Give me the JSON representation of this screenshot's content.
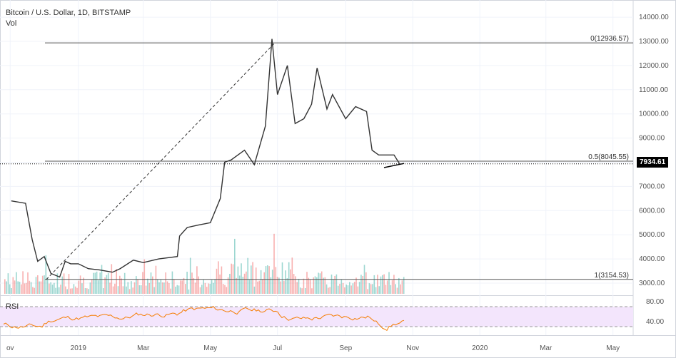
{
  "header": {
    "title": "Bitcoin / U.S. Dollar, 1D, BITSTAMP",
    "vol_label": "Vol"
  },
  "rsi": {
    "label": "RSI",
    "axis_ticks": [
      "80.00",
      "40.00"
    ],
    "upper_level": 70,
    "lower_level": 30
  },
  "current_price": "7934.61",
  "colors": {
    "up": "#26a69a",
    "down": "#ef5350",
    "line": "#333333",
    "rsi_line": "#f57c00",
    "rsi_band": "#f3e5fc"
  },
  "chart_data": {
    "type": "line",
    "instrument": "Bitcoin / U.S. Dollar",
    "interval": "1D",
    "exchange": "BITSTAMP",
    "x_axis_labels": [
      "ov",
      "2019",
      "Mar",
      "May",
      "Jul",
      "Sep",
      "Nov",
      "2020",
      "Mar",
      "May"
    ],
    "y_axis_ticks": [
      3000,
      4000,
      5000,
      6000,
      7000,
      8000,
      9000,
      10000,
      11000,
      12000,
      13000,
      14000
    ],
    "ylim": [
      2500,
      14500
    ],
    "series": [
      {
        "x": [
          "2018-11-01",
          "2018-11-14",
          "2018-11-20",
          "2018-11-25",
          "2018-12-01",
          "2018-12-07",
          "2018-12-15",
          "2018-12-20",
          "2018-12-25",
          "2019-01-01",
          "2019-01-10",
          "2019-01-20",
          "2019-02-01",
          "2019-02-08",
          "2019-02-20",
          "2019-03-01",
          "2019-03-15",
          "2019-04-01",
          "2019-04-03",
          "2019-04-10",
          "2019-04-20",
          "2019-05-01",
          "2019-05-10",
          "2019-05-14",
          "2019-05-20",
          "2019-06-01",
          "2019-06-10",
          "2019-06-20",
          "2019-06-26",
          "2019-07-01",
          "2019-07-10",
          "2019-07-17",
          "2019-07-25",
          "2019-08-01",
          "2019-08-06",
          "2019-08-15",
          "2019-08-20",
          "2019-09-01",
          "2019-09-10",
          "2019-09-20",
          "2019-09-25",
          "2019-10-01",
          "2019-10-10",
          "2019-10-15",
          "2019-10-20"
        ],
        "values": [
          6400,
          6300,
          4800,
          3900,
          4100,
          3400,
          3250,
          3900,
          3800,
          3800,
          3600,
          3550,
          3450,
          3600,
          3950,
          3850,
          4000,
          4100,
          4950,
          5300,
          5400,
          5500,
          6500,
          8000,
          8100,
          8500,
          7900,
          9500,
          13100,
          10800,
          12000,
          9600,
          9800,
          10400,
          11900,
          10200,
          10800,
          9800,
          10300,
          10100,
          8500,
          8300,
          8300,
          8300,
          7934.61
        ]
      }
    ],
    "annotations": [
      {
        "label": "0(12936.57)",
        "value": 12936.57
      },
      {
        "label": "0.5(8045.55)",
        "value": 8045.55
      },
      {
        "label": "1(3154.53)",
        "value": 3154.53
      }
    ]
  }
}
